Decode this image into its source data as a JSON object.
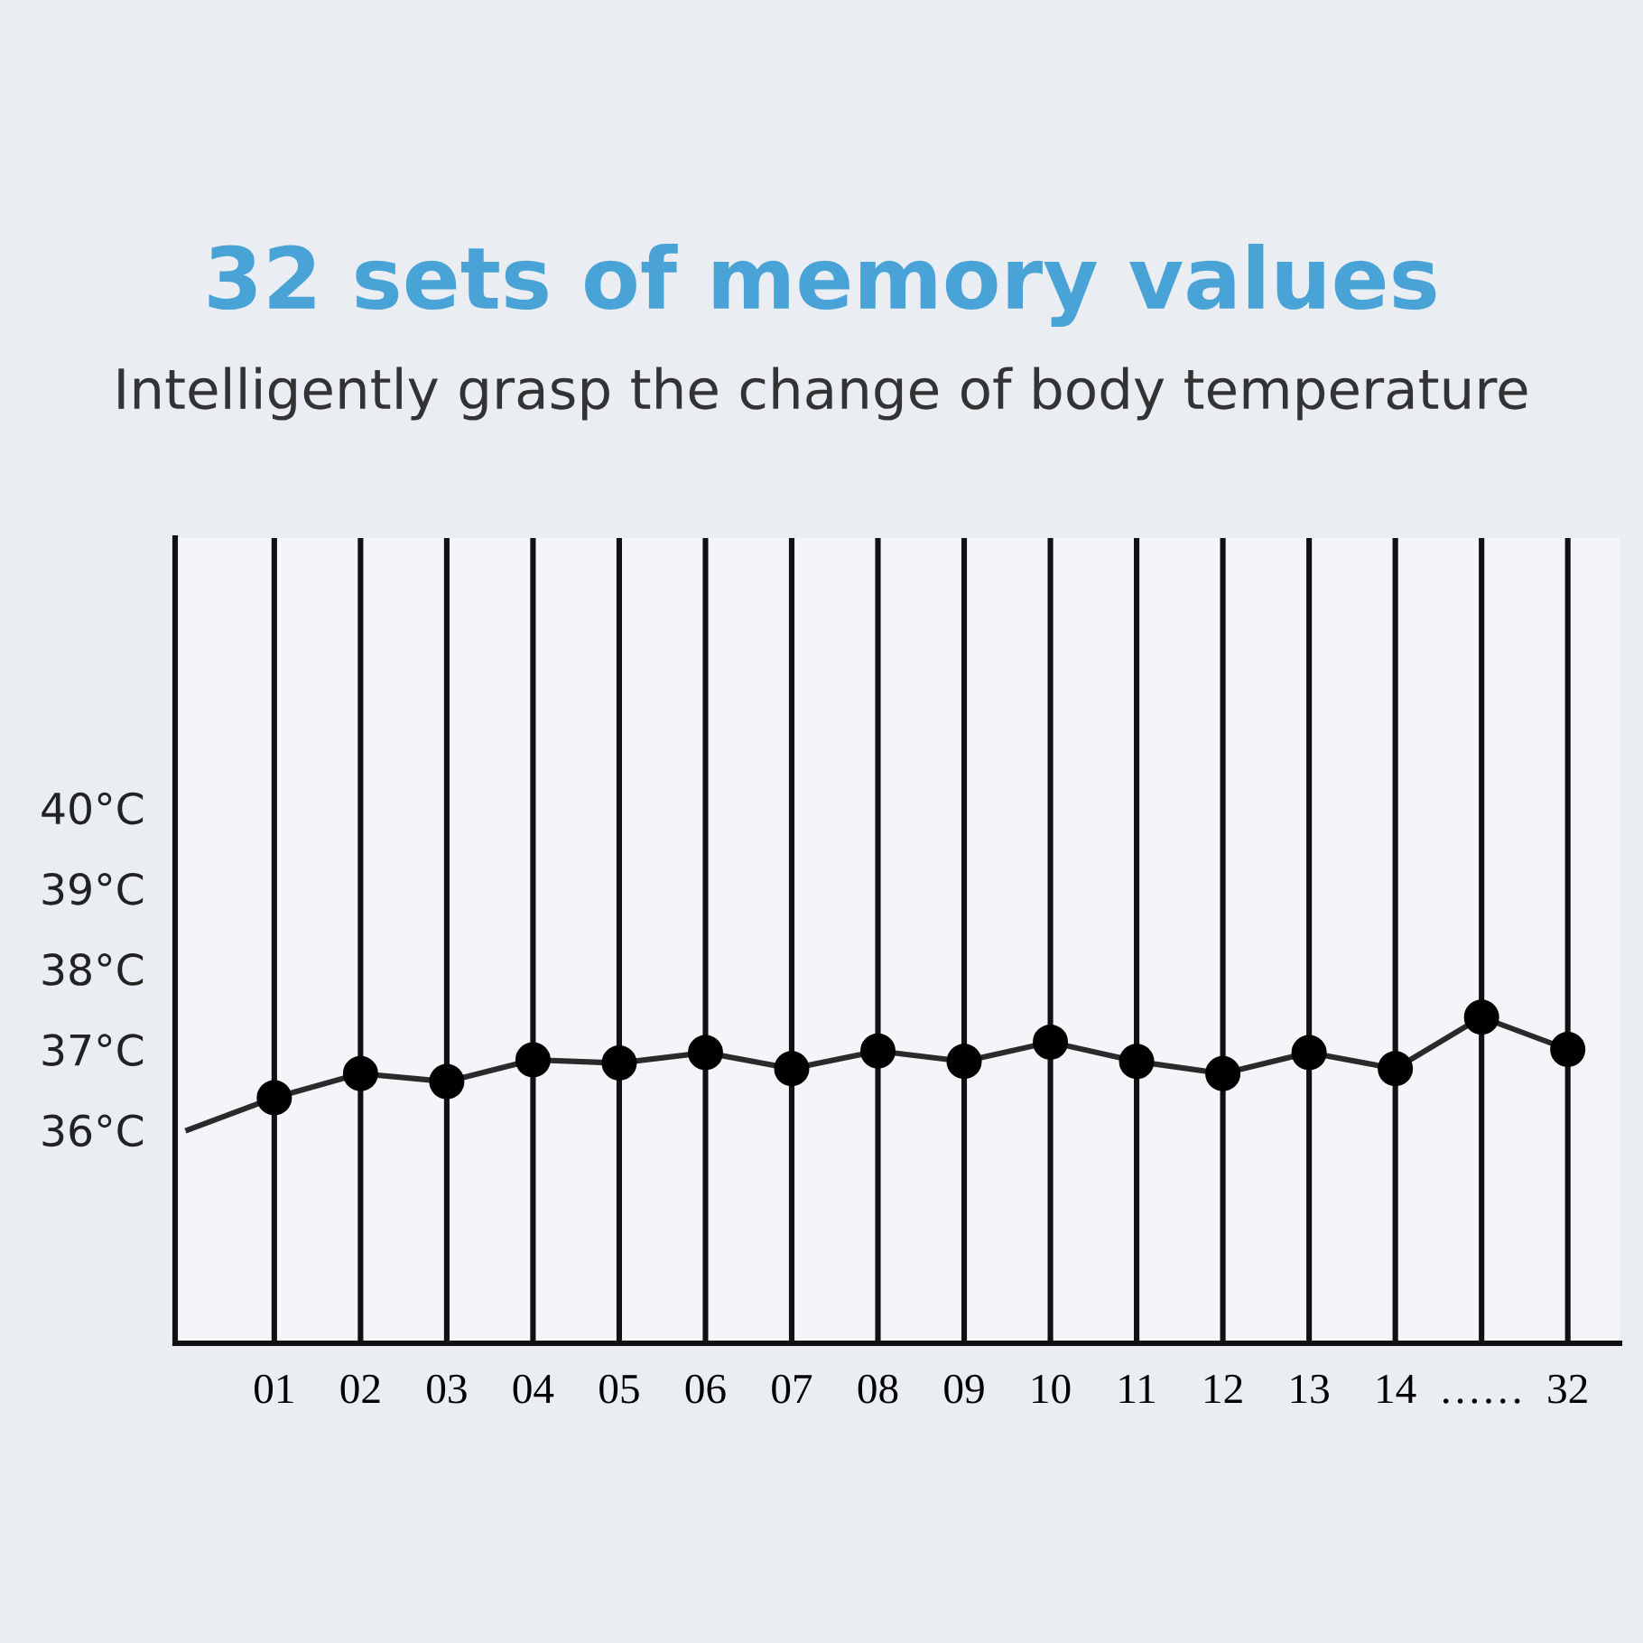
{
  "chart_data": {
    "type": "line",
    "title": "32 sets of memory values",
    "subtitle": "Intelligently grasp the change of body temperature",
    "categories": [
      null,
      "01",
      "02",
      "03",
      "04",
      "05",
      "06",
      "07",
      "08",
      "09",
      "10",
      "11",
      "12",
      "13",
      "14",
      "……",
      "32"
    ],
    "series": [
      {
        "color": "#2a2a2a",
        "values": [
          36.0,
          36.4,
          36.7,
          36.6,
          36.87,
          36.83,
          36.96,
          36.76,
          36.98,
          36.85,
          37.09,
          36.85,
          36.7,
          36.96,
          36.76,
          37.4,
          37.0
        ]
      }
    ],
    "ylim": [
      33.35,
      43.35
    ],
    "yticks": [
      {
        "value": 36,
        "label": "36°C"
      },
      {
        "value": 37,
        "label": "37°C"
      },
      {
        "value": 38,
        "label": "38°C"
      },
      {
        "value": 39,
        "label": "39°C"
      },
      {
        "value": 40,
        "label": "40°C"
      }
    ],
    "grid": "x",
    "marker": "circle",
    "line_style": "solid"
  }
}
